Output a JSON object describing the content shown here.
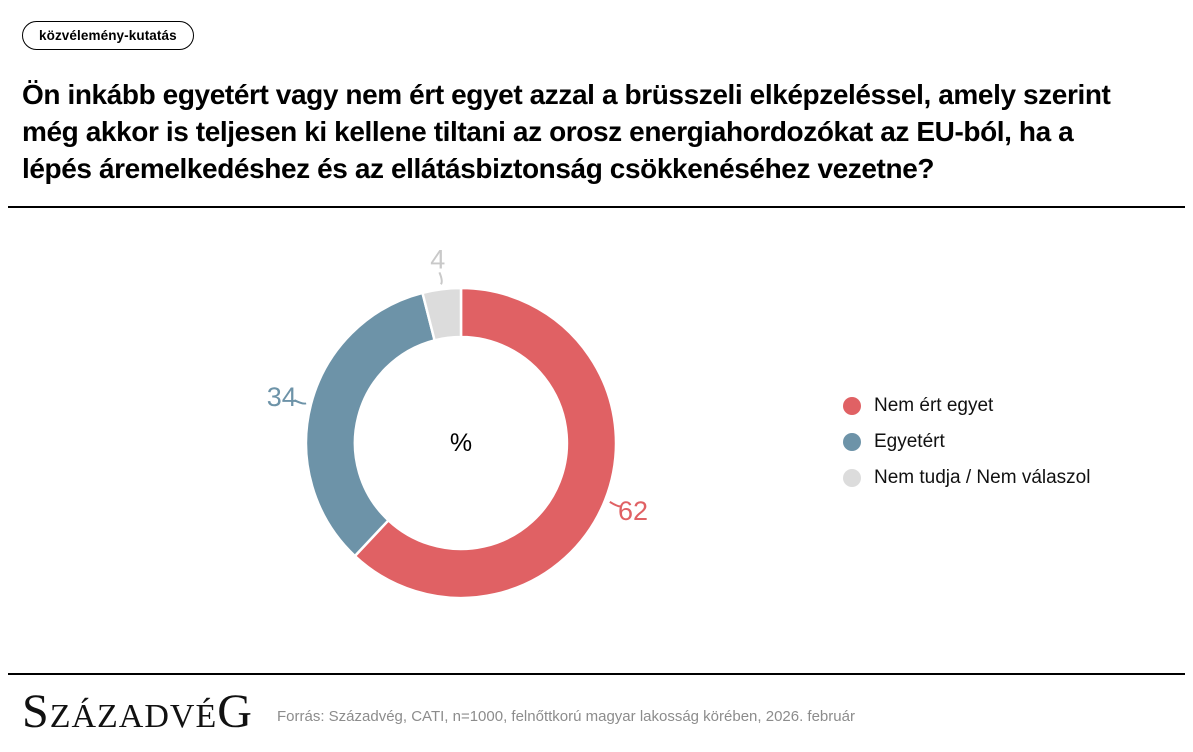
{
  "badge": {
    "label": "közvélemény-kutatás"
  },
  "title": {
    "text": "Ön inkább egyetért vagy nem ért egyet azzal a brüsszeli elképzeléssel, amely szerint még akkor is teljesen ki kellene tiltani az orosz energiahordozókat az EU-ból, ha a lépés áremelkedéshez és az ellátásbiztonság csökkenéséhez vezetne?",
    "lines": [
      "Ön inkább egyetért vagy nem ért egyet azzal a brüsszeli elképzeléssel, amely szerint",
      "még akkor is teljesen ki kellene tiltani az orosz energiahordozókat az EU-ból, ha a",
      "lépés áremelkedéshez és az ellátásbiztonság csökkenéséhez vezetne?"
    ]
  },
  "chart_data": {
    "type": "pie",
    "subtype": "donut",
    "unit": "%",
    "center_label": "%",
    "direction": "clockwise",
    "start_angle_deg": 0,
    "legend_position": "right",
    "segments": [
      {
        "label": "Nem ért egyet",
        "value": 62,
        "color": "#e06164",
        "label_color": "#e06164"
      },
      {
        "label": "Egyetért",
        "value": 34,
        "color": "#6d93a8",
        "label_color": "#6d93a8"
      },
      {
        "label": "Nem tudja / Nem válaszol",
        "value": 4,
        "color": "#dcdcdc",
        "label_color": "#c9c9c9"
      }
    ]
  },
  "footer": {
    "logo_text": "SzázadvéG",
    "source": "Forrás: Századvég, CATI, n=1000, felnőttkorú magyar lakosság körében, 2026. február"
  }
}
